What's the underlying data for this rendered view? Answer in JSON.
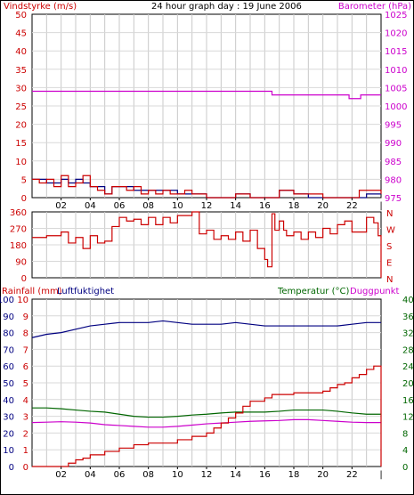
{
  "chart_data": [
    {
      "type": "line",
      "title": "24 hour graph day : 19 June 2006",
      "left_axis_label": "Vindstyrke (m/s)",
      "right_axis_label": "Barometer (hPa)",
      "x_ticks": [
        "02",
        "04",
        "06",
        "08",
        "10",
        "12",
        "14",
        "16",
        "18",
        "20",
        "22"
      ],
      "x_range": [
        0,
        24
      ],
      "left_ticks": [
        "0",
        "5",
        "10",
        "15",
        "20",
        "25",
        "30",
        "35",
        "40",
        "45",
        "50"
      ],
      "left_range": [
        0,
        50
      ],
      "right_ticks": [
        "975",
        "980",
        "985",
        "990",
        "995",
        "1000",
        "1005",
        "1010",
        "1015",
        "1020",
        "1025"
      ],
      "right_range": [
        975,
        1025
      ],
      "grid": true,
      "colors": {
        "wind_mean": "#cc0000",
        "wind_gust": "#000080",
        "barometer": "#cc00cc"
      },
      "series": [
        {
          "id": "wind_mean",
          "x": [
            0,
            0.5,
            1,
            1.5,
            2,
            2.5,
            3,
            3.5,
            4,
            4.5,
            5,
            5.5,
            6,
            6.5,
            7,
            7.5,
            8,
            8.5,
            9,
            9.5,
            10,
            10.5,
            11,
            11.5,
            12,
            13,
            14,
            15,
            16,
            17,
            18,
            19,
            20,
            21,
            22,
            22.5,
            23,
            23.5,
            24
          ],
          "y": [
            5,
            4,
            5,
            3,
            6,
            3,
            4,
            6,
            3,
            2,
            1,
            3,
            3,
            2,
            3,
            1,
            2,
            1,
            2,
            1,
            1,
            2,
            1,
            1,
            0,
            0,
            1,
            0,
            0,
            2,
            1,
            1,
            0,
            0,
            0,
            2,
            2,
            2,
            1
          ]
        },
        {
          "id": "wind_gust",
          "x": [
            0,
            0.5,
            1,
            1.5,
            2,
            2.5,
            3,
            3.5,
            4,
            4.5,
            5,
            5.5,
            6,
            6.5,
            7,
            7.5,
            8,
            8.5,
            9,
            9.5,
            10,
            10.5,
            11,
            11.5,
            12,
            13,
            14,
            15,
            16,
            17,
            18,
            19,
            20,
            21,
            22,
            22.5,
            23,
            23.5,
            24
          ],
          "y": [
            5,
            5,
            4,
            4,
            5,
            4,
            5,
            4,
            3,
            3,
            1,
            3,
            3,
            3,
            2,
            2,
            2,
            2,
            2,
            2,
            1,
            1,
            1,
            1,
            0,
            0,
            1,
            0,
            0,
            2,
            1,
            0,
            0,
            0,
            0,
            0,
            1,
            1,
            1
          ]
        },
        {
          "id": "barometer",
          "x": [
            0,
            16.2,
            16.5,
            21.6,
            21.8,
            22.4,
            22.6,
            24
          ],
          "y": [
            1004,
            1004,
            1003,
            1003,
            1002,
            1002,
            1003,
            1003
          ]
        }
      ]
    },
    {
      "type": "line",
      "left_ticks": [
        "0",
        "90",
        "180",
        "270",
        "360"
      ],
      "left_range": [
        0,
        360
      ],
      "right_ticks": [
        "N",
        "E",
        "S",
        "W",
        "N"
      ],
      "colors": {
        "direction": "#cc0000"
      },
      "series": [
        {
          "id": "wind_direction",
          "x": [
            0,
            1,
            2,
            2.5,
            3,
            3.5,
            4,
            4.5,
            5,
            5.5,
            6,
            6.5,
            7,
            7.5,
            8,
            8.5,
            9,
            9.5,
            10,
            11,
            11.5,
            12,
            12.5,
            13,
            13.5,
            14,
            14.5,
            15,
            15.5,
            16,
            16.2,
            16.5,
            16.7,
            17,
            17.3,
            17.5,
            18,
            18.5,
            19,
            19.5,
            20,
            20.5,
            21,
            21.5,
            22,
            23,
            23.5,
            23.8,
            24
          ],
          "y": [
            220,
            230,
            250,
            190,
            220,
            160,
            230,
            190,
            200,
            280,
            330,
            310,
            320,
            290,
            330,
            290,
            330,
            300,
            340,
            360,
            240,
            260,
            210,
            230,
            210,
            250,
            200,
            260,
            160,
            100,
            60,
            350,
            260,
            310,
            260,
            230,
            250,
            210,
            250,
            220,
            270,
            240,
            290,
            310,
            250,
            330,
            300,
            230,
            0
          ]
        }
      ]
    },
    {
      "type": "line",
      "left_label_1": "Rainfall (mm)",
      "left_label_2": "Luftfuktighet",
      "right_label_1": "Temperatur (°C)",
      "right_label_2": "Duggpunkt",
      "left_ticks_1": [
        "0",
        "1",
        "2",
        "3",
        "4",
        "5",
        "6",
        "7",
        "8",
        "9",
        "10"
      ],
      "left_ticks_2": [
        "0",
        "10",
        "20",
        "30",
        "40",
        "50",
        "60",
        "70",
        "80",
        "90",
        "100"
      ],
      "right_ticks": [
        "0",
        "4",
        "8",
        "12",
        "16",
        "20",
        "24",
        "28",
        "32",
        "36",
        "40"
      ],
      "left_range": [
        0,
        100
      ],
      "right_range": [
        0,
        40
      ],
      "colors": {
        "rainfall": "#cc0000",
        "humidity": "#000080",
        "temperature": "#006600",
        "dewpoint": "#cc00cc"
      },
      "series": [
        {
          "id": "rainfall",
          "x": [
            0,
            2,
            2.5,
            3,
            3.5,
            4,
            5,
            6,
            7,
            8,
            10,
            11,
            12,
            12.5,
            13,
            13.5,
            14,
            14.5,
            15,
            16,
            16.5,
            17,
            18,
            19,
            20,
            20.5,
            21,
            21.5,
            22,
            22.5,
            23,
            23.5,
            23.9,
            24
          ],
          "y": [
            0,
            0,
            0.2,
            0.4,
            0.5,
            0.7,
            0.9,
            1.1,
            1.3,
            1.4,
            1.6,
            1.8,
            2.0,
            2.3,
            2.6,
            2.9,
            3.2,
            3.6,
            3.9,
            4.1,
            4.3,
            4.3,
            4.4,
            4.4,
            4.5,
            4.7,
            4.9,
            5.0,
            5.3,
            5.5,
            5.8,
            6.0,
            6.0,
            0
          ]
        },
        {
          "id": "humidity",
          "x": [
            0,
            1,
            2,
            3,
            4,
            5,
            6,
            7,
            8,
            9,
            10,
            11,
            12,
            13,
            14,
            15,
            16,
            17,
            18,
            19,
            20,
            21,
            22,
            23,
            24
          ],
          "y": [
            77,
            79,
            80,
            82,
            84,
            85,
            86,
            86,
            86,
            87,
            86,
            85,
            85,
            85,
            86,
            85,
            84,
            84,
            84,
            84,
            84,
            84,
            85,
            86,
            86
          ]
        },
        {
          "id": "temperature",
          "x": [
            0,
            1,
            2,
            3,
            4,
            5,
            6,
            7,
            8,
            9,
            10,
            11,
            12,
            13,
            14,
            15,
            16,
            17,
            18,
            19,
            20,
            21,
            22,
            23,
            24
          ],
          "y": [
            14,
            14,
            13.8,
            13.5,
            13.2,
            13,
            12.5,
            12,
            11.8,
            11.8,
            12,
            12.3,
            12.5,
            12.8,
            13,
            13,
            13,
            13.2,
            13.5,
            13.5,
            13.5,
            13.2,
            12.8,
            12.5,
            12.5
          ]
        },
        {
          "id": "dewpoint",
          "x": [
            0,
            1,
            2,
            3,
            4,
            5,
            6,
            7,
            8,
            9,
            10,
            11,
            12,
            13,
            14,
            15,
            16,
            17,
            18,
            19,
            20,
            21,
            22,
            23,
            24
          ],
          "y": [
            10.5,
            10.6,
            10.7,
            10.6,
            10.4,
            10,
            9.8,
            9.6,
            9.4,
            9.4,
            9.6,
            9.9,
            10.2,
            10.4,
            10.6,
            10.8,
            10.9,
            11.0,
            11.2,
            11.2,
            11.0,
            10.8,
            10.6,
            10.5,
            10.5
          ]
        }
      ]
    }
  ]
}
